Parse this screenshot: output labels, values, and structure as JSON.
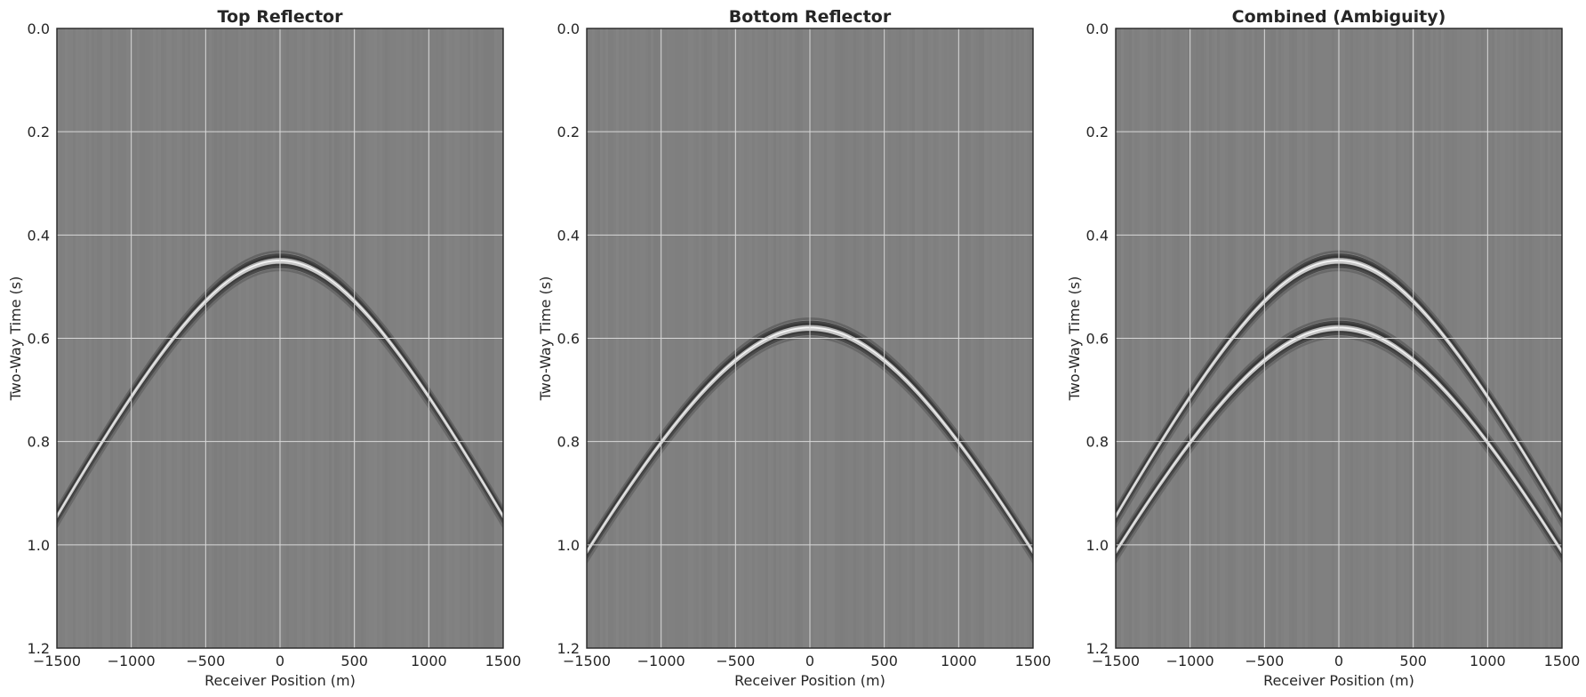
{
  "colors": {
    "background": "#808080",
    "grid": "#d9d9d9",
    "frame": "#262626",
    "text": "#262626"
  },
  "chart_data": [
    {
      "type": "heatmap",
      "title": "Top Reflector",
      "xlabel": "Receiver Position (m)",
      "ylabel": "Two-Way Time (s)",
      "xlim": [
        -1500,
        1500
      ],
      "ylim": [
        1.2,
        0.0
      ],
      "xticks": [
        "−1500",
        "−1000",
        "−500",
        "0",
        "500",
        "1000",
        "1500"
      ],
      "xtick_values": [
        -1500,
        -1000,
        -500,
        0,
        500,
        1000,
        1500
      ],
      "yticks": [
        "0.0",
        "0.2",
        "0.4",
        "0.6",
        "0.8",
        "1.0",
        "1.2"
      ],
      "ytick_values": [
        0.0,
        0.2,
        0.4,
        0.6,
        0.8,
        1.0,
        1.2
      ],
      "grid": true,
      "colormap": "gray",
      "reflectors": [
        {
          "apex_time_s": 0.45,
          "velocity_m_s": 3600
        }
      ]
    },
    {
      "type": "heatmap",
      "title": "Bottom Reflector",
      "xlabel": "Receiver Position (m)",
      "ylabel": "Two-Way Time (s)",
      "xlim": [
        -1500,
        1500
      ],
      "ylim": [
        1.2,
        0.0
      ],
      "xticks": [
        "−1500",
        "−1000",
        "−500",
        "0",
        "500",
        "1000",
        "1500"
      ],
      "xtick_values": [
        -1500,
        -1000,
        -500,
        0,
        500,
        1000,
        1500
      ],
      "yticks": [
        "0.0",
        "0.2",
        "0.4",
        "0.6",
        "0.8",
        "1.0",
        "1.2"
      ],
      "ytick_values": [
        0.0,
        0.2,
        0.4,
        0.6,
        0.8,
        1.0,
        1.2
      ],
      "grid": true,
      "colormap": "gray",
      "reflectors": [
        {
          "apex_time_s": 0.58,
          "velocity_m_s": 3600
        }
      ]
    },
    {
      "type": "heatmap",
      "title": "Combined (Ambiguity)",
      "xlabel": "Receiver Position (m)",
      "ylabel": "Two-Way Time (s)",
      "xlim": [
        -1500,
        1500
      ],
      "ylim": [
        1.2,
        0.0
      ],
      "xticks": [
        "−1500",
        "−1000",
        "−500",
        "0",
        "500",
        "1000",
        "1500"
      ],
      "xtick_values": [
        -1500,
        -1000,
        -500,
        0,
        500,
        1000,
        1500
      ],
      "yticks": [
        "0.0",
        "0.2",
        "0.4",
        "0.6",
        "0.8",
        "1.0",
        "1.2"
      ],
      "ytick_values": [
        0.0,
        0.2,
        0.4,
        0.6,
        0.8,
        1.0,
        1.2
      ],
      "grid": true,
      "colormap": "gray",
      "reflectors": [
        {
          "apex_time_s": 0.45,
          "velocity_m_s": 3600
        },
        {
          "apex_time_s": 0.58,
          "velocity_m_s": 3600
        }
      ]
    }
  ]
}
